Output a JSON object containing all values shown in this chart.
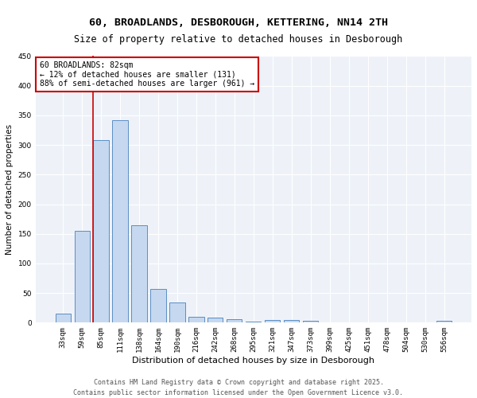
{
  "title_line1": "60, BROADLANDS, DESBOROUGH, KETTERING, NN14 2TH",
  "title_line2": "Size of property relative to detached houses in Desborough",
  "xlabel": "Distribution of detached houses by size in Desborough",
  "ylabel": "Number of detached properties",
  "bar_color": "#c5d8f0",
  "bar_edge_color": "#5b8ec4",
  "categories": [
    "33sqm",
    "59sqm",
    "85sqm",
    "111sqm",
    "138sqm",
    "164sqm",
    "190sqm",
    "216sqm",
    "242sqm",
    "268sqm",
    "295sqm",
    "321sqm",
    "347sqm",
    "373sqm",
    "399sqm",
    "425sqm",
    "451sqm",
    "478sqm",
    "504sqm",
    "530sqm",
    "556sqm"
  ],
  "values": [
    15,
    155,
    308,
    342,
    165,
    57,
    34,
    10,
    8,
    6,
    2,
    4,
    4,
    3,
    0,
    0,
    0,
    0,
    0,
    0,
    3
  ],
  "ylim": [
    0,
    450
  ],
  "yticks": [
    0,
    50,
    100,
    150,
    200,
    250,
    300,
    350,
    400,
    450
  ],
  "annotation_title": "60 BROADLANDS: 82sqm",
  "annotation_line1": "← 12% of detached houses are smaller (131)",
  "annotation_line2": "88% of semi-detached houses are larger (961) →",
  "vline_index": 2,
  "vline_color": "#cc0000",
  "annotation_box_edgecolor": "#cc0000",
  "background_color": "#eef2f8",
  "grid_color": "#ffffff",
  "footer_line1": "Contains HM Land Registry data © Crown copyright and database right 2025.",
  "footer_line2": "Contains public sector information licensed under the Open Government Licence v3.0.",
  "title_fontsize": 9.5,
  "subtitle_fontsize": 8.5,
  "xlabel_fontsize": 8,
  "ylabel_fontsize": 7.5,
  "tick_fontsize": 6.5,
  "annotation_fontsize": 7,
  "footer_fontsize": 6
}
